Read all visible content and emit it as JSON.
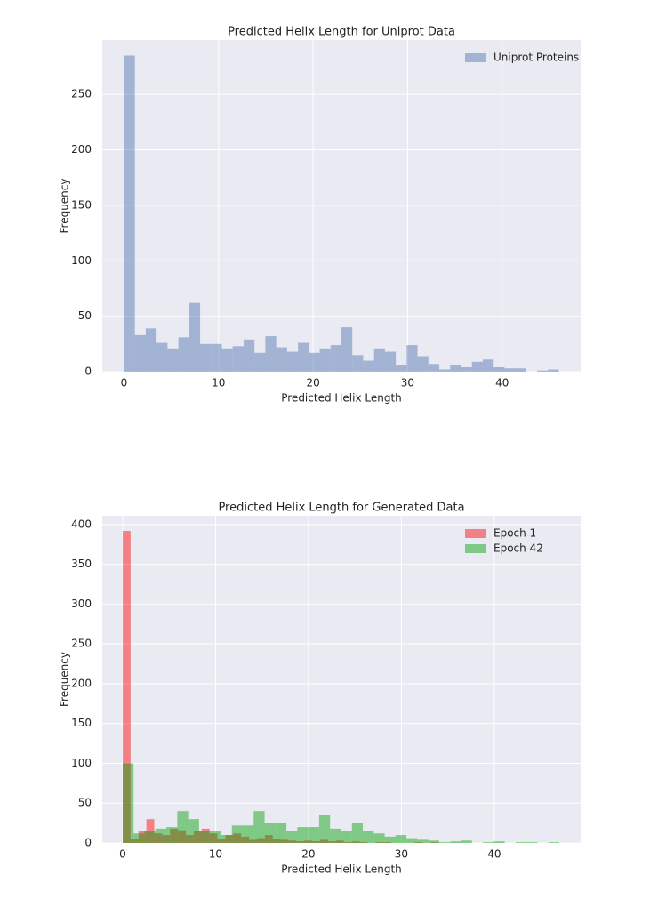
{
  "chart_data": [
    {
      "type": "histogram",
      "title": "Predicted Helix Length for Uniprot Data",
      "xlabel": "Predicted Helix Length",
      "ylabel": "Frequency",
      "series": [
        {
          "name": "Uniprot Proteins",
          "color": "#4c72b0",
          "bins": [
            0,
            1.15,
            2.3,
            3.45,
            4.6,
            5.75,
            6.9,
            8.05,
            9.2,
            10.35,
            11.5,
            12.65,
            13.8,
            14.95,
            16.1,
            17.25,
            18.4,
            19.55,
            20.7,
            21.85,
            23,
            24.15,
            25.3,
            26.45,
            27.6,
            28.75,
            29.9,
            31.05,
            32.2,
            33.35,
            34.5,
            35.65,
            36.8,
            37.95,
            39.1,
            40.25,
            41.4,
            42.55,
            43.7,
            44.85,
            46
          ],
          "values": [
            285,
            33,
            39,
            26,
            21,
            31,
            62,
            25,
            25,
            21,
            23,
            29,
            17,
            32,
            22,
            18,
            26,
            17,
            21,
            24,
            40,
            15,
            10,
            21,
            18,
            6,
            24,
            14,
            7,
            2,
            6,
            4,
            9,
            11,
            4,
            3,
            3,
            0,
            1,
            2
          ]
        }
      ],
      "alpha": 0.45,
      "xlim": [
        -2.3,
        48.3
      ],
      "ylim": [
        0,
        299
      ],
      "xticks": [
        0,
        10,
        20,
        30,
        40
      ],
      "yticks": [
        0,
        50,
        100,
        150,
        200,
        250
      ],
      "grid": true,
      "legend": "upper right"
    },
    {
      "type": "histogram",
      "title": "Predicted Helix Length for Generated Data",
      "xlabel": "Predicted Helix Length",
      "ylabel": "Frequency",
      "series": [
        {
          "name": "Epoch 1",
          "color": "#ff0000",
          "bins": [
            0,
            0.85,
            1.7,
            2.55,
            3.4,
            4.25,
            5.1,
            5.95,
            6.8,
            7.65,
            8.5,
            9.35,
            10.2,
            11.05,
            11.9,
            12.75,
            13.6,
            14.45,
            15.3,
            16.15,
            17,
            17.85,
            18.7,
            19.55,
            20.4,
            21.25,
            22.1,
            22.95,
            23.8,
            24.65,
            25.5,
            26.35,
            27.2,
            28.05,
            28.9,
            29.75,
            30.6,
            31.45,
            32.3,
            33.15,
            34
          ],
          "values": [
            392,
            5,
            15,
            30,
            12,
            10,
            18,
            16,
            10,
            15,
            18,
            12,
            5,
            10,
            12,
            8,
            4,
            6,
            10,
            5,
            4,
            3,
            2,
            3,
            2,
            4,
            2,
            3,
            1,
            2,
            1,
            0,
            1,
            1,
            0,
            0,
            0,
            1,
            0,
            1
          ]
        },
        {
          "name": "Epoch 42",
          "color": "#00a000",
          "bins": [
            0,
            1.175,
            2.35,
            3.525,
            4.7,
            5.875,
            7.05,
            8.225,
            9.4,
            10.575,
            11.75,
            12.925,
            14.1,
            15.275,
            16.45,
            17.625,
            18.8,
            19.975,
            21.15,
            22.325,
            23.5,
            24.675,
            25.85,
            27.025,
            28.2,
            29.375,
            30.55,
            31.725,
            32.9,
            34.075,
            35.25,
            36.425,
            37.6,
            38.775,
            39.95,
            41.125,
            42.3,
            43.475,
            44.65,
            45.825,
            47
          ],
          "values": [
            100,
            12,
            15,
            18,
            20,
            40,
            30,
            15,
            15,
            10,
            22,
            22,
            40,
            25,
            25,
            15,
            20,
            20,
            35,
            18,
            15,
            25,
            15,
            12,
            8,
            10,
            6,
            4,
            3,
            1,
            2,
            3,
            0,
            1,
            2,
            0,
            1,
            1,
            0,
            1
          ]
        }
      ],
      "alpha": 0.45,
      "xlim": [
        -2.2,
        49.3
      ],
      "ylim": [
        0,
        411
      ],
      "xticks": [
        0,
        10,
        20,
        30,
        40
      ],
      "yticks": [
        0,
        50,
        100,
        150,
        200,
        250,
        300,
        350,
        400
      ],
      "grid": true,
      "legend": "upper right"
    }
  ]
}
